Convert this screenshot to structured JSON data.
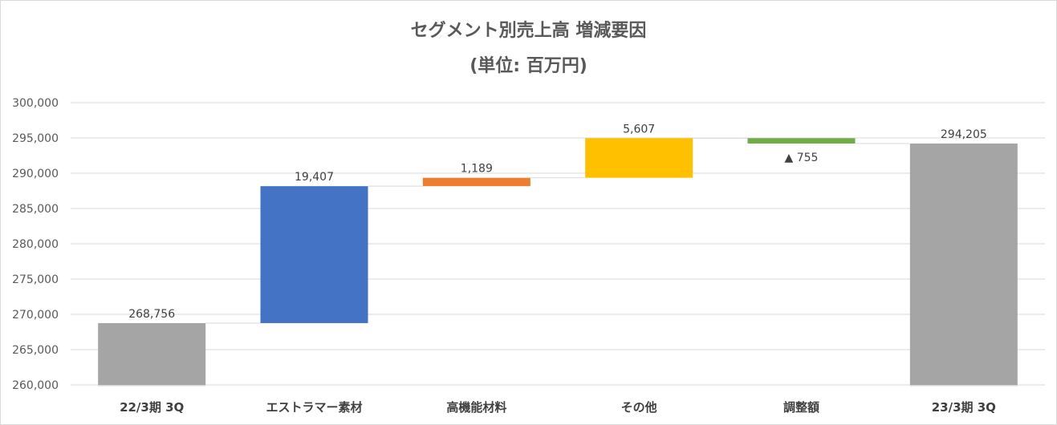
{
  "chart_data": {
    "type": "waterfall",
    "title_line1": "セグメント別売上高 増減要因",
    "title_line2": "(単位: 百万円)",
    "ylim": [
      260000,
      300000
    ],
    "y_ticks": [
      "260,000",
      "265,000",
      "270,000",
      "275,000",
      "280,000",
      "285,000",
      "290,000",
      "295,000",
      "300,000"
    ],
    "grid": true,
    "categories": [
      "22/3期 3Q",
      "エストラマー素材",
      "高機能材料",
      "その他",
      "調整額",
      "23/3期 3Q"
    ],
    "bars": [
      {
        "category": "22/3期 3Q",
        "kind": "total",
        "start": 260000,
        "end": 268756,
        "label": "268,756",
        "color": "#a5a5a5"
      },
      {
        "category": "エストラマー素材",
        "kind": "delta",
        "start": 268756,
        "end": 288163,
        "label": "19,407",
        "color": "#4472c4"
      },
      {
        "category": "高機能材料",
        "kind": "delta",
        "start": 288163,
        "end": 289352,
        "label": "1,189",
        "color": "#ed7d31"
      },
      {
        "category": "その他",
        "kind": "delta",
        "start": 289352,
        "end": 294959,
        "label": "5,607",
        "color": "#ffc000"
      },
      {
        "category": "調整額",
        "kind": "delta",
        "start": 294959,
        "end": 294205,
        "label": "▲ 755",
        "color": "#70ad47"
      },
      {
        "category": "23/3期 3Q",
        "kind": "total",
        "start": 260000,
        "end": 294205,
        "label": "294,205",
        "color": "#a5a5a5"
      }
    ]
  }
}
